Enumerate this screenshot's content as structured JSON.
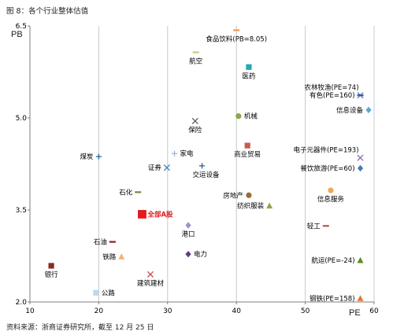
{
  "figure_title": "图 8：各个行业整体估值",
  "source_note": "资料来源：浙商证券研究所，截至 12 月 25 日",
  "chart_data": {
    "type": "scatter",
    "xlabel": "PE",
    "ylabel": "PB",
    "xlim": [
      10,
      60
    ],
    "ylim": [
      2.0,
      6.5
    ],
    "x_ticks": [
      10,
      20,
      30,
      40,
      50,
      60
    ],
    "y_ticks": [
      2.0,
      3.5,
      5.0,
      6.5
    ],
    "x_grid": true,
    "y_grid": false,
    "points": [
      {
        "label": "食品饮料(PB=8.05)",
        "label_parts": [
          {
            "text": "食品饮料(PB=8.05)",
            "color": "#000000"
          }
        ],
        "x": 40.0,
        "y": 6.43,
        "marker": "dash",
        "color": "#f39a45",
        "label_pos": "below"
      },
      {
        "label": "航空",
        "label_parts": [
          {
            "text": "航空",
            "color": "#000000"
          }
        ],
        "x": 34.1,
        "y": 6.07,
        "marker": "dash",
        "color": "#c0d17a",
        "label_pos": "below"
      },
      {
        "label": "医药",
        "label_parts": [
          {
            "text": "医药",
            "color": "#000000"
          }
        ],
        "x": 41.8,
        "y": 5.83,
        "marker": "square",
        "color": "#26a7b6",
        "label_pos": "below"
      },
      {
        "label": "农林牧渔(PE=74)",
        "label_parts": [
          {
            "text": "农林牧渔(PE=74)",
            "color": "#000000"
          }
        ],
        "x": 58.0,
        "y": 5.37,
        "marker": "x",
        "color": "#5c7fb8",
        "label_pos": "above-left"
      },
      {
        "label": "有色(PE=160)",
        "label_parts": [
          {
            "text": "有色(PE=160)",
            "color": "#000000"
          }
        ],
        "x": 58.0,
        "y": 5.37,
        "marker": "dash",
        "color": "#2d5fa3",
        "label_pos": "left"
      },
      {
        "label": "信息设备",
        "label_parts": [
          {
            "text": "信息设备",
            "color": "#000000"
          }
        ],
        "x": 59.2,
        "y": 5.13,
        "marker": "diamond",
        "color": "#5ba8d6",
        "label_pos": "left"
      },
      {
        "label": "机械",
        "label_parts": [
          {
            "text": "机械",
            "color": "#000000"
          }
        ],
        "x": 40.3,
        "y": 5.03,
        "marker": "circle",
        "color": "#8aa94a",
        "label_pos": "right"
      },
      {
        "label": "保险",
        "label_parts": [
          {
            "text": "保险",
            "color": "#000000"
          }
        ],
        "x": 34.0,
        "y": 4.95,
        "marker": "x",
        "color": "#606060",
        "label_pos": "below"
      },
      {
        "label": "电子元器件(PE=193)",
        "label_parts": [
          {
            "text": "电子元器件",
            "color": "#000000"
          },
          {
            "text": "(PE=193)",
            "color": "#000000"
          }
        ],
        "x": 58.0,
        "y": 4.35,
        "marker": "x",
        "color": "#8c69a8",
        "label_pos": "above-left"
      },
      {
        "label": "餐饮旅游(PE=60)",
        "label_parts": [
          {
            "text": "餐饮旅游",
            "color": "#000000"
          },
          {
            "text": "(PE=60)",
            "color": "#000000"
          }
        ],
        "x": 58.0,
        "y": 4.18,
        "marker": "diamond",
        "color": "#3f7db8",
        "label_pos": "left"
      },
      {
        "label": "商业贸易",
        "label_parts": [
          {
            "text": "商业贸易",
            "color": "#000000"
          }
        ],
        "x": 41.6,
        "y": 4.55,
        "marker": "square",
        "color": "#c85a50",
        "label_pos": "below"
      },
      {
        "label": "煤炭",
        "label_parts": [
          {
            "text": "煤炭",
            "color": "#000000"
          }
        ],
        "x": 20.0,
        "y": 4.37,
        "marker": "plus",
        "color": "#2d5fa3",
        "label_pos": "left"
      },
      {
        "label": "家电",
        "label_parts": [
          {
            "text": "家电",
            "color": "#000000"
          }
        ],
        "x": 31.0,
        "y": 4.42,
        "marker": "plus",
        "color": "#9fb4d8",
        "label_pos": "right"
      },
      {
        "label": "证券",
        "label_parts": [
          {
            "text": "证券",
            "color": "#000000"
          }
        ],
        "x": 29.9,
        "y": 4.19,
        "marker": "x",
        "color": "#3f7db8",
        "label_pos": "left"
      },
      {
        "label": "交运设备",
        "label_parts": [
          {
            "text": "交运设备",
            "color": "#000000"
          }
        ],
        "x": 35.0,
        "y": 4.22,
        "marker": "plus",
        "color": "#2d5fa3",
        "label_pos": "below-right"
      },
      {
        "label": "石化",
        "label_parts": [
          {
            "text": "石化",
            "color": "#000000"
          }
        ],
        "x": 25.7,
        "y": 3.79,
        "marker": "dash",
        "color": "#6f8a3a",
        "label_pos": "left"
      },
      {
        "label": "房地产",
        "label_parts": [
          {
            "text": "房地产",
            "color": "#000000"
          }
        ],
        "x": 41.8,
        "y": 3.74,
        "marker": "circle",
        "color": "#9a6b3a",
        "label_pos": "left"
      },
      {
        "label": "信息服务",
        "label_parts": [
          {
            "text": "信息服务",
            "color": "#000000"
          }
        ],
        "x": 53.7,
        "y": 3.82,
        "marker": "circle",
        "color": "#f2a65a",
        "label_pos": "below"
      },
      {
        "label": "纺织服装",
        "label_parts": [
          {
            "text": "纺织服装",
            "color": "#000000"
          }
        ],
        "x": 44.8,
        "y": 3.57,
        "marker": "triangle",
        "color": "#8aa94a",
        "label_pos": "left"
      },
      {
        "label": "全部A股",
        "label_parts": [
          {
            "text": "全部A股",
            "color": "#e41a1c"
          }
        ],
        "x": 26.3,
        "y": 3.43,
        "marker": "square",
        "color": "#e41a1c",
        "label_pos": "right",
        "emphasis": true
      },
      {
        "label": "港口",
        "label_parts": [
          {
            "text": "港口",
            "color": "#000000"
          }
        ],
        "x": 33.0,
        "y": 3.25,
        "marker": "diamond",
        "color": "#9b93c8",
        "label_pos": "below"
      },
      {
        "label": "轻工",
        "label_parts": [
          {
            "text": "轻工",
            "color": "#000000"
          }
        ],
        "x": 53.0,
        "y": 3.24,
        "marker": "dash",
        "color": "#c0504d",
        "label_pos": "left"
      },
      {
        "label": "石油",
        "label_parts": [
          {
            "text": "石油",
            "color": "#000000"
          }
        ],
        "x": 22.0,
        "y": 2.98,
        "marker": "dash",
        "color": "#8b1a1a",
        "label_pos": "left"
      },
      {
        "label": "电力",
        "label_parts": [
          {
            "text": "电力",
            "color": "#000000"
          }
        ],
        "x": 33.0,
        "y": 2.78,
        "marker": "diamond",
        "color": "#5b3d8a",
        "label_pos": "right"
      },
      {
        "label": "铁路",
        "label_parts": [
          {
            "text": "铁路",
            "color": "#000000"
          }
        ],
        "x": 23.3,
        "y": 2.74,
        "marker": "triangle",
        "color": "#f2b27a",
        "label_pos": "left"
      },
      {
        "label": "航运(PE=-24)",
        "label_parts": [
          {
            "text": "航运(PE=",
            "color": "#000000"
          },
          {
            "text": "-24",
            "color": "#000000"
          },
          {
            "text": ")",
            "color": "#000000"
          }
        ],
        "x": 58.0,
        "y": 2.68,
        "marker": "triangle",
        "color": "#5e8a2b",
        "label_pos": "left"
      },
      {
        "label": "银行",
        "label_parts": [
          {
            "text": "银行",
            "color": "#000000"
          }
        ],
        "x": 13.1,
        "y": 2.59,
        "marker": "square",
        "color": "#8b2c22",
        "label_pos": "below"
      },
      {
        "label": "建筑建材",
        "label_parts": [
          {
            "text": "建筑建材",
            "color": "#000000"
          }
        ],
        "x": 27.5,
        "y": 2.45,
        "marker": "x",
        "color": "#c0504d",
        "label_pos": "below"
      },
      {
        "label": "公路",
        "label_parts": [
          {
            "text": "公路",
            "color": "#000000"
          }
        ],
        "x": 19.6,
        "y": 2.15,
        "marker": "square",
        "color": "#bcd8ec",
        "label_pos": "right"
      },
      {
        "label": "钢铁(PE=158)",
        "label_parts": [
          {
            "text": "钢铁(PE=158)",
            "color": "#000000"
          }
        ],
        "x": 58.0,
        "y": 2.06,
        "marker": "triangle",
        "color": "#e07b39",
        "label_pos": "left"
      }
    ]
  },
  "colors": {
    "axis": "#7f7f7f",
    "grid": "#c8c8c8",
    "emphasis": "#e41a1c"
  }
}
